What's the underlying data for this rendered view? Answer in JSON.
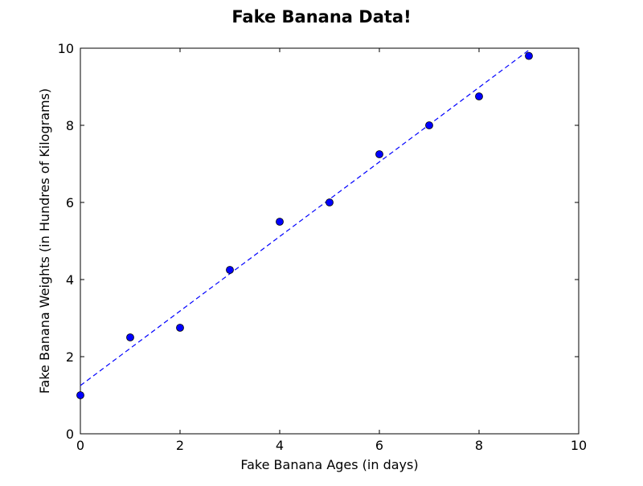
{
  "chart_data": {
    "type": "scatter",
    "title": "Fake Banana Data!",
    "xlabel": "Fake Banana Ages (in days)",
    "ylabel": "Fake Banana Weights (in Hundres of Kilograms)",
    "xlim": [
      0,
      10
    ],
    "ylim": [
      0,
      10
    ],
    "x_ticks": [
      "0",
      "2",
      "4",
      "6",
      "8",
      "10"
    ],
    "y_ticks": [
      "0",
      "2",
      "4",
      "6",
      "8",
      "10"
    ],
    "grid": false,
    "legend": false,
    "series": [
      {
        "kind": "points",
        "marker": "circle",
        "color": "#0000ff",
        "x": [
          0,
          1,
          2,
          3,
          4,
          5,
          6,
          7,
          8,
          9
        ],
        "y": [
          1.0,
          2.5,
          2.75,
          4.25,
          5.5,
          6.0,
          7.25,
          8.0,
          8.75,
          9.8
        ]
      },
      {
        "kind": "fit-line",
        "line_style": "dashed",
        "color": "#0000ff",
        "x": [
          0,
          9
        ],
        "y": [
          1.25,
          9.95
        ]
      }
    ]
  }
}
